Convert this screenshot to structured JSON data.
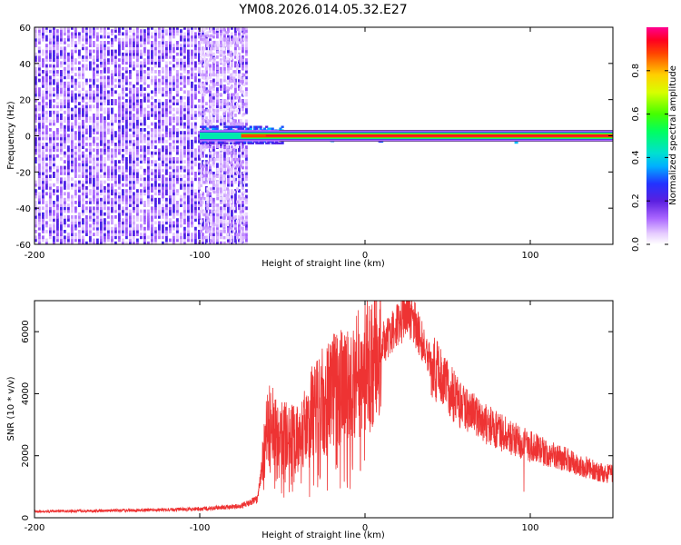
{
  "title": "YM08.2026.014.05.32.E27",
  "chart_data": [
    {
      "type": "heatmap",
      "title": "",
      "xlabel": "Height of straight line (km)",
      "ylabel": "Frequency (Hz)",
      "xlim": [
        -200,
        150
      ],
      "ylim": [
        -60,
        60
      ],
      "xticks": [
        -200,
        -100,
        0,
        100
      ],
      "yticks": [
        -60,
        -40,
        -20,
        0,
        20,
        40,
        60
      ],
      "regions": [
        {
          "name": "noise",
          "x": [
            -200,
            -72
          ],
          "f": [
            -60,
            60
          ],
          "amplitude": [
            0.1,
            0.2
          ]
        },
        {
          "name": "noise-fringe",
          "x": [
            -100,
            -72
          ],
          "f": [
            -60,
            60
          ],
          "amplitude": [
            0.02,
            0.1
          ]
        },
        {
          "name": "transition-blob",
          "x": [
            -100,
            -50
          ],
          "f": [
            -4,
            6
          ],
          "amplitude": [
            0.3,
            0.6
          ]
        },
        {
          "name": "zero-frequency-band",
          "x": [
            -55,
            150
          ],
          "f": [
            -2,
            2
          ],
          "amplitude": [
            0.7,
            0.95
          ]
        }
      ],
      "colorbar": {
        "label": "Normalized spectral amplitude",
        "range": [
          0,
          1
        ],
        "ticks": [
          0.0,
          0.2,
          0.4,
          0.6,
          0.8
        ]
      }
    },
    {
      "type": "line",
      "title": "",
      "xlabel": "Height of straight line (km)",
      "ylabel": "SNR (10 * v/v)",
      "xlim": [
        -200,
        150
      ],
      "ylim": [
        0,
        7000
      ],
      "xticks": [
        -200,
        -100,
        0,
        100
      ],
      "yticks": [
        0,
        2000,
        4000,
        6000
      ],
      "color": "#ee3333",
      "series": [
        {
          "name": "SNR",
          "x": [
            -200,
            -150,
            -100,
            -75,
            -65,
            -60,
            -58,
            -50,
            -40,
            -30,
            -20,
            -10,
            0,
            10,
            20,
            25,
            30,
            40,
            50,
            60,
            80,
            100,
            120,
            140,
            150
          ],
          "values": [
            200,
            230,
            280,
            380,
            600,
            2600,
            3000,
            2600,
            2500,
            3600,
            4100,
            4500,
            5000,
            5600,
            6200,
            6600,
            6300,
            5000,
            4200,
            3500,
            2800,
            2300,
            1900,
            1500,
            1400
          ]
        }
      ]
    }
  ]
}
